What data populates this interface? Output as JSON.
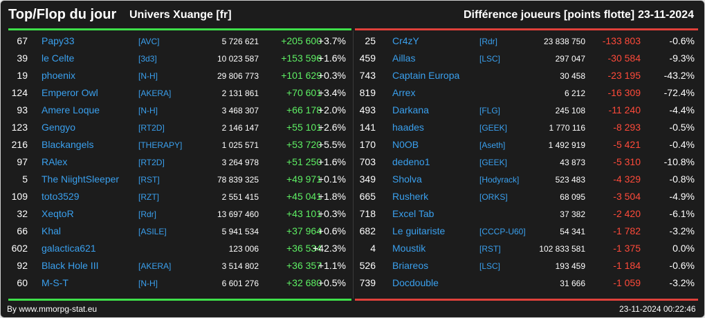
{
  "header": {
    "title": "Top/Flop du jour",
    "universe": "Univers Xuange [fr]",
    "subtitle": "Différence joueurs [points flotte]",
    "date": "23-11-2024"
  },
  "colors": {
    "background": "#1c1c1c",
    "accent_green": "#3ee04a",
    "accent_red": "#e0413a",
    "name_blue": "#3aa0ee",
    "delta_green": "#5ef064",
    "delta_red": "#ff4a3a"
  },
  "top": [
    {
      "rank": "67",
      "name": "Papy33",
      "alliance": "[AVC]",
      "points": "5 726 621",
      "delta": "+205 600",
      "pct": "+3.7%"
    },
    {
      "rank": "39",
      "name": "le Celte",
      "alliance": "[3d3]",
      "points": "10 023 587",
      "delta": "+153 596",
      "pct": "+1.6%"
    },
    {
      "rank": "19",
      "name": "phoenix",
      "alliance": "[N-H]",
      "points": "29 806 773",
      "delta": "+101 629",
      "pct": "+0.3%"
    },
    {
      "rank": "124",
      "name": "Emperor Owl",
      "alliance": "[AKERA]",
      "points": "2 131 861",
      "delta": "+70 601",
      "pct": "+3.4%"
    },
    {
      "rank": "93",
      "name": "Amere Loque",
      "alliance": "[N-H]",
      "points": "3 468 307",
      "delta": "+66 178",
      "pct": "+2.0%"
    },
    {
      "rank": "123",
      "name": "Gengyo",
      "alliance": "[RT2D]",
      "points": "2 146 147",
      "delta": "+55 101",
      "pct": "+2.6%"
    },
    {
      "rank": "216",
      "name": "Blackangels",
      "alliance": "[THERAPY]",
      "points": "1 025 571",
      "delta": "+53 720",
      "pct": "+5.5%"
    },
    {
      "rank": "97",
      "name": "RAlex",
      "alliance": "[RT2D]",
      "points": "3 264 978",
      "delta": "+51 250",
      "pct": "+1.6%"
    },
    {
      "rank": "5",
      "name": "The NiightSleeper",
      "alliance": "[RST]",
      "points": "78 839 325",
      "delta": "+49 971",
      "pct": "+0.1%"
    },
    {
      "rank": "109",
      "name": "toto3529",
      "alliance": "[RZT]",
      "points": "2 551 415",
      "delta": "+45 041",
      "pct": "+1.8%"
    },
    {
      "rank": "32",
      "name": "XeqtoR",
      "alliance": "[Rdr]",
      "points": "13 697 460",
      "delta": "+43 101",
      "pct": "+0.3%"
    },
    {
      "rank": "66",
      "name": "Khal",
      "alliance": "[ASILE]",
      "points": "5 941 534",
      "delta": "+37 964",
      "pct": "+0.6%"
    },
    {
      "rank": "602",
      "name": "galactica621",
      "alliance": "",
      "points": "123 006",
      "delta": "+36 534",
      "pct": "+42.3%"
    },
    {
      "rank": "92",
      "name": "Black Hole III",
      "alliance": "[AKERA]",
      "points": "3 514 802",
      "delta": "+36 357",
      "pct": "+1.1%"
    },
    {
      "rank": "60",
      "name": "M-S-T",
      "alliance": "[N-H]",
      "points": "6 601 276",
      "delta": "+32 680",
      "pct": "+0.5%"
    }
  ],
  "flop": [
    {
      "rank": "25",
      "name": "Cr4zY",
      "alliance": "[Rdr]",
      "points": "23 838 750",
      "delta": "-133 803",
      "pct": "-0.6%"
    },
    {
      "rank": "459",
      "name": "Aillas",
      "alliance": "[LSC]",
      "points": "297 047",
      "delta": "-30 584",
      "pct": "-9.3%"
    },
    {
      "rank": "743",
      "name": "Captain Europa",
      "alliance": "",
      "points": "30 458",
      "delta": "-23 195",
      "pct": "-43.2%"
    },
    {
      "rank": "819",
      "name": "Arrex",
      "alliance": "",
      "points": "6 212",
      "delta": "-16 309",
      "pct": "-72.4%"
    },
    {
      "rank": "493",
      "name": "Darkana",
      "alliance": "[FLG]",
      "points": "245 108",
      "delta": "-11 240",
      "pct": "-4.4%"
    },
    {
      "rank": "141",
      "name": "haades",
      "alliance": "[GEEK]",
      "points": "1 770 116",
      "delta": "-8 293",
      "pct": "-0.5%"
    },
    {
      "rank": "170",
      "name": "N0OB",
      "alliance": "[Aseth]",
      "points": "1 492 919",
      "delta": "-5 421",
      "pct": "-0.4%"
    },
    {
      "rank": "703",
      "name": "dedeno1",
      "alliance": "[GEEK]",
      "points": "43 873",
      "delta": "-5 310",
      "pct": "-10.8%"
    },
    {
      "rank": "349",
      "name": "Sholva",
      "alliance": "[Hodyrack]",
      "points": "523 483",
      "delta": "-4 329",
      "pct": "-0.8%"
    },
    {
      "rank": "665",
      "name": "Rusherk",
      "alliance": "[ORKS]",
      "points": "68 095",
      "delta": "-3 504",
      "pct": "-4.9%"
    },
    {
      "rank": "718",
      "name": "Excel Tab",
      "alliance": "",
      "points": "37 382",
      "delta": "-2 420",
      "pct": "-6.1%"
    },
    {
      "rank": "682",
      "name": "Le guitariste",
      "alliance": "[CCCP-U60]",
      "points": "54 341",
      "delta": "-1 782",
      "pct": "-3.2%"
    },
    {
      "rank": "4",
      "name": "Moustik",
      "alliance": "[RST]",
      "points": "102 833 581",
      "delta": "-1 375",
      "pct": "0.0%"
    },
    {
      "rank": "526",
      "name": "Briareos",
      "alliance": "[LSC]",
      "points": "193 459",
      "delta": "-1 184",
      "pct": "-0.6%"
    },
    {
      "rank": "739",
      "name": "Docdouble",
      "alliance": "",
      "points": "31 666",
      "delta": "-1 059",
      "pct": "-3.2%"
    }
  ],
  "footer": {
    "credit": "By www.mmorpg-stat.eu",
    "timestamp": "23-11-2024 00:22:46"
  }
}
